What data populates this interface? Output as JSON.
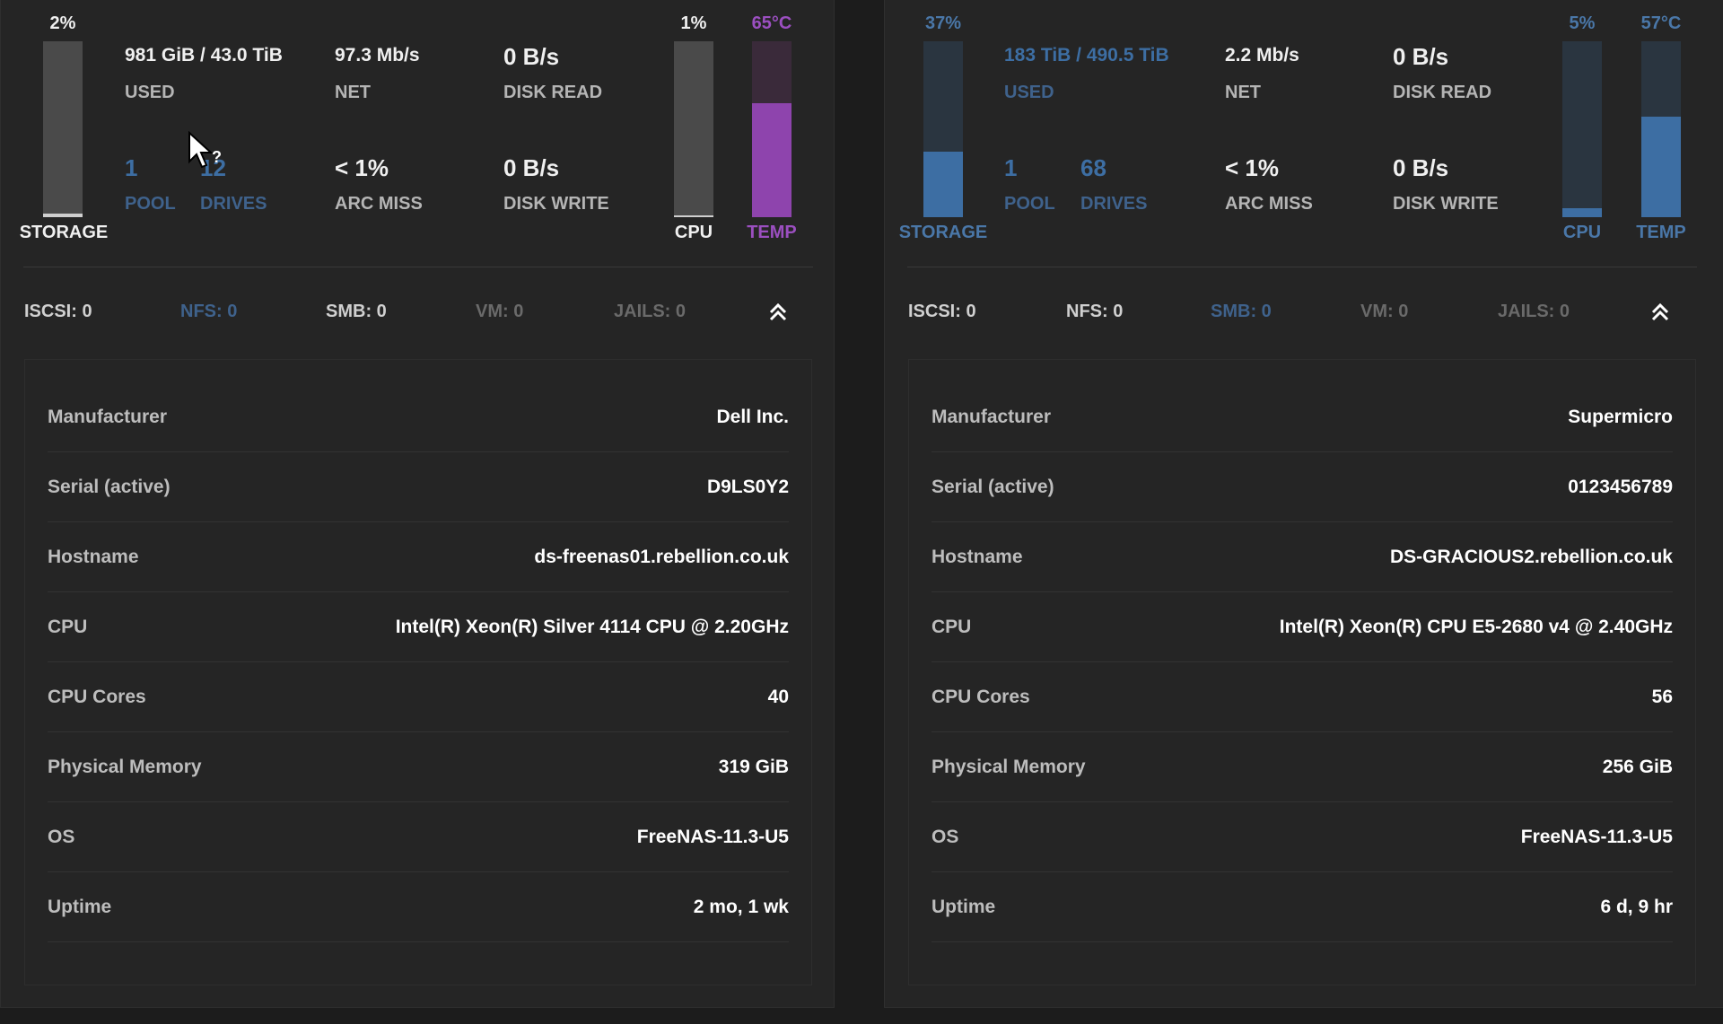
{
  "colors": {
    "white": "#f0f0f0",
    "grey_track": "#4a4a4a",
    "grey_fill": "#cfcfcf",
    "purple_track": "#3a2a3a",
    "purple": "#8e44ad",
    "purple_text": "#9b4fc0",
    "blue": "#3d6ea3",
    "blue_text": "#4a77a8",
    "blue_track": "#2a3540",
    "label": "#b5b5b5",
    "dim": "#6a6a6a",
    "nfs_blue": "#3f628c"
  },
  "systems": [
    {
      "storage": {
        "pct_label": "2%",
        "fill": 0.02,
        "label": "STORAGE"
      },
      "used": {
        "value": "981 GiB / 43.0 TiB",
        "label": "USED"
      },
      "net": {
        "value": "97.3 Mb/s",
        "label": "NET"
      },
      "disk_read": {
        "value": "0 B/s",
        "label": "DISK READ"
      },
      "pool": {
        "value": "1",
        "label": "POOL"
      },
      "drives": {
        "value": "12",
        "label": "DRIVES"
      },
      "arc_miss": {
        "value": "< 1%",
        "label": "ARC MISS"
      },
      "disk_write": {
        "value": "0 B/s",
        "label": "DISK WRITE"
      },
      "cpu": {
        "pct_label": "1%",
        "fill": 0.01,
        "label": "CPU"
      },
      "temp": {
        "pct_label": "65°C",
        "fill": 0.65,
        "label": "TEMP"
      },
      "services": [
        "ISCSI: 0",
        "NFS: 0",
        "SMB: 0",
        "VM: 0",
        "JAILS: 0"
      ],
      "info": [
        {
          "k": "Manufacturer",
          "v": "Dell Inc."
        },
        {
          "k": "Serial (active)",
          "v": "D9LS0Y2"
        },
        {
          "k": "Hostname",
          "v": "ds-freenas01.rebellion.co.uk"
        },
        {
          "k": "CPU",
          "v": "Intel(R) Xeon(R) Silver 4114 CPU @ 2.20GHz"
        },
        {
          "k": "CPU Cores",
          "v": "40"
        },
        {
          "k": "Physical Memory",
          "v": "319 GiB"
        },
        {
          "k": "OS",
          "v": "FreeNAS-11.3-U5"
        },
        {
          "k": "Uptime",
          "v": "2 mo, 1 wk"
        }
      ]
    },
    {
      "storage": {
        "pct_label": "37%",
        "fill": 0.37,
        "label": "STORAGE"
      },
      "used": {
        "value": "183 TiB / 490.5 TiB",
        "label": "USED"
      },
      "net": {
        "value": "2.2 Mb/s",
        "label": "NET"
      },
      "disk_read": {
        "value": "0 B/s",
        "label": "DISK READ"
      },
      "pool": {
        "value": "1",
        "label": "POOL"
      },
      "drives": {
        "value": "68",
        "label": "DRIVES"
      },
      "arc_miss": {
        "value": "< 1%",
        "label": "ARC MISS"
      },
      "disk_write": {
        "value": "0 B/s",
        "label": "DISK WRITE"
      },
      "cpu": {
        "pct_label": "5%",
        "fill": 0.05,
        "label": "CPU"
      },
      "temp": {
        "pct_label": "57°C",
        "fill": 0.57,
        "label": "TEMP"
      },
      "services": [
        "ISCSI: 0",
        "NFS: 0",
        "SMB: 0",
        "VM: 0",
        "JAILS: 0"
      ],
      "info": [
        {
          "k": "Manufacturer",
          "v": "Supermicro"
        },
        {
          "k": "Serial (active)",
          "v": "0123456789"
        },
        {
          "k": "Hostname",
          "v": "DS-GRACIOUS2.rebellion.co.uk"
        },
        {
          "k": "CPU",
          "v": "Intel(R) Xeon(R) CPU E5-2680 v4 @ 2.40GHz"
        },
        {
          "k": "CPU Cores",
          "v": "56"
        },
        {
          "k": "Physical Memory",
          "v": "256 GiB"
        },
        {
          "k": "OS",
          "v": "FreeNAS-11.3-U5"
        },
        {
          "k": "Uptime",
          "v": "6 d, 9 hr"
        }
      ]
    }
  ],
  "icons": {
    "collapse": "double-chevron-up-icon",
    "cursor": "mouse-pointer-icon"
  },
  "cursor_hint": "?"
}
